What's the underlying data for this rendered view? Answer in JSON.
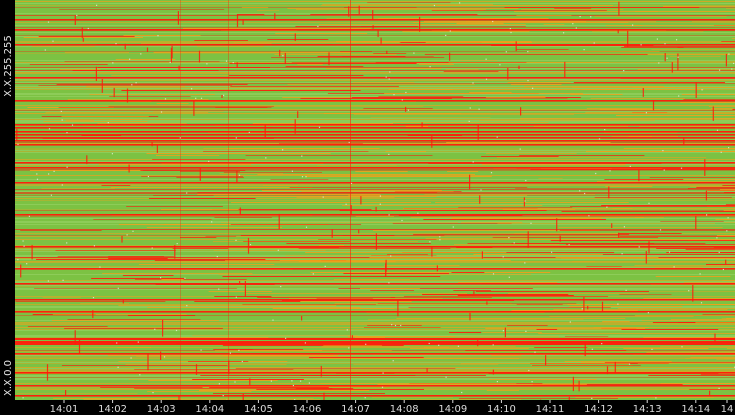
{
  "chart_data": {
    "type": "heatmap",
    "title": "",
    "xlabel": "",
    "ylabel": "",
    "x_tick_labels": [
      "14:01",
      "14:02",
      "14:03",
      "14:04",
      "14:05",
      "14:06",
      "14:07",
      "14:08",
      "14:09",
      "14:10",
      "14:11",
      "14:12",
      "14:13",
      "14:14",
      "14"
    ],
    "y_tick_labels": {
      "top": "X.X.255.255",
      "bottom": "X.X.0.0"
    },
    "colors": {
      "background": "#000000",
      "base_green": "#7cc243",
      "light_green": "#9bd66a",
      "orange": "#f2a01a",
      "red": "#ff1a0a",
      "white_speck": "#e8efe0",
      "axis_text": "#dcdcdc"
    },
    "legend": "none",
    "grid": false
  }
}
